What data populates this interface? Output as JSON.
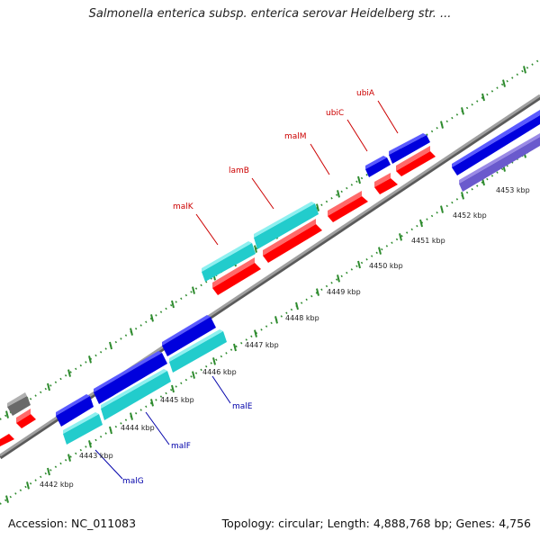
{
  "title": "Salmonella enterica subsp. enterica serovar Heidelberg str. ...",
  "footer": {
    "accession": "Accession: NC_011083",
    "summary": "Topology: circular; Length: 4,888,768 bp; Genes: 4,756"
  },
  "colors": {
    "forward_scale_ticks": "#2e8b2e",
    "reverse_scale_ticks": "#2e8b2e",
    "backbone": "#8a8a8a",
    "gene_red": "#ff0000",
    "gene_blue": "#0000dd",
    "gene_cyan": "#22cccc",
    "gene_purple": "#6a5acd",
    "gene_gray": "#6a6a6a",
    "label_red": "#cc0000",
    "label_blue": "#0000aa"
  },
  "scale_labels": [
    "4442 kbp",
    "4443 kbp",
    "4444 kbp",
    "4445 kbp",
    "4446 kbp",
    "4447 kbp",
    "4448 kbp",
    "4449 kbp",
    "4450 kbp",
    "4451 kbp",
    "4452 kbp",
    "4453 kbp"
  ],
  "gene_labels": [
    {
      "text": "ubiA",
      "color": "red"
    },
    {
      "text": "ubiC",
      "color": "red"
    },
    {
      "text": "malM",
      "color": "red"
    },
    {
      "text": "lamB",
      "color": "red"
    },
    {
      "text": "malK",
      "color": "red"
    },
    {
      "text": "malE",
      "color": "blue"
    },
    {
      "text": "malF",
      "color": "blue"
    },
    {
      "text": "malG",
      "color": "blue"
    }
  ]
}
